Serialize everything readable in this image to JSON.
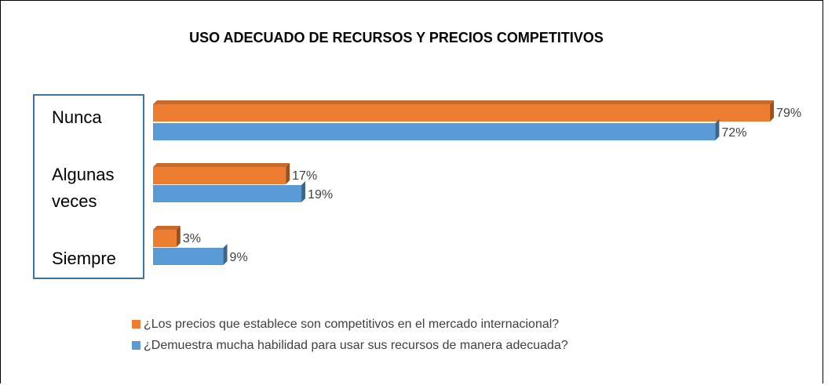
{
  "chart_data": {
    "type": "bar",
    "orientation": "horizontal",
    "title": "USO ADECUADO DE RECURSOS Y PRECIOS COMPETITIVOS",
    "categories": [
      "Nunca",
      "Algunas veces",
      "Siempre"
    ],
    "series": [
      {
        "name": "¿Los precios que establece son competitivos en el mercado internacional?",
        "color": "#ED7D31",
        "values": [
          79,
          17,
          3
        ],
        "value_labels": [
          "79%",
          "17%",
          "3%"
        ]
      },
      {
        "name": "¿Demuestra mucha habilidad para usar sus recursos de manera adecuada?",
        "color": "#5B9BD5",
        "values": [
          72,
          19,
          9
        ],
        "value_labels": [
          "72%",
          "19%",
          "9%"
        ]
      }
    ]
  }
}
